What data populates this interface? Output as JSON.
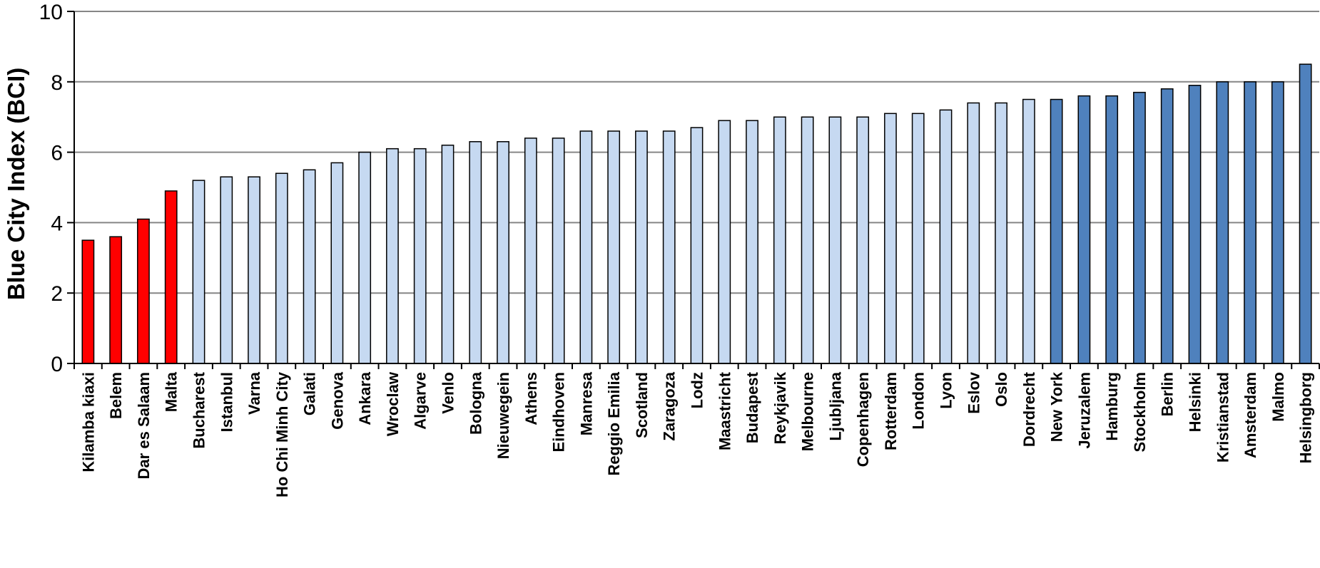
{
  "chart_data": {
    "type": "bar",
    "ylabel": "Blue City Index (BCI)",
    "xlabel": "",
    "ylim": [
      0,
      10
    ],
    "yticks": [
      0,
      2,
      4,
      6,
      8,
      10
    ],
    "grid": true,
    "categories": [
      "Kilamba kiaxi",
      "Belem",
      "Dar es Salaam",
      "Malta",
      "Bucharest",
      "Istanbul",
      "Varna",
      "Ho Chi Minh City",
      "Galati",
      "Genova",
      "Ankara",
      "Wroclaw",
      "Algarve",
      "Venlo",
      "Bologna",
      "Nieuwegein",
      "Athens",
      "Eindhoven",
      "Manresa",
      "Reggio Emilia",
      "Scotland",
      "Zaragoza",
      "Lodz",
      "Maastricht",
      "Budapest",
      "Reykjavik",
      "Melbourne",
      "Ljubljana",
      "Copenhagen",
      "Rotterdam",
      "London",
      "Lyon",
      "Eslov",
      "Oslo",
      "Dordrecht",
      "New York",
      "Jeruzalem",
      "Hamburg",
      "Stockholm",
      "Berlin",
      "Helsinki",
      "Kristianstad",
      "Amsterdam",
      "Malmo",
      "Helsingborg"
    ],
    "values": [
      3.5,
      3.6,
      4.1,
      4.9,
      5.2,
      5.3,
      5.3,
      5.4,
      5.5,
      5.7,
      6.0,
      6.1,
      6.1,
      6.2,
      6.3,
      6.3,
      6.4,
      6.4,
      6.6,
      6.6,
      6.6,
      6.6,
      6.7,
      6.9,
      6.9,
      7.0,
      7.0,
      7.0,
      7.0,
      7.1,
      7.1,
      7.2,
      7.4,
      7.4,
      7.5,
      7.5,
      7.6,
      7.6,
      7.7,
      7.8,
      7.9,
      8.0,
      8.0,
      8.0,
      8.5
    ],
    "bar_groups": [
      0,
      0,
      0,
      0,
      1,
      1,
      1,
      1,
      1,
      1,
      1,
      1,
      1,
      1,
      1,
      1,
      1,
      1,
      1,
      1,
      1,
      1,
      1,
      1,
      1,
      1,
      1,
      1,
      1,
      1,
      1,
      1,
      1,
      1,
      1,
      2,
      2,
      2,
      2,
      2,
      2,
      2,
      2,
      2,
      2
    ],
    "group_colors": [
      "#ff0000",
      "#c6d9f1",
      "#4f81bd"
    ],
    "grid_color": "#868686"
  }
}
